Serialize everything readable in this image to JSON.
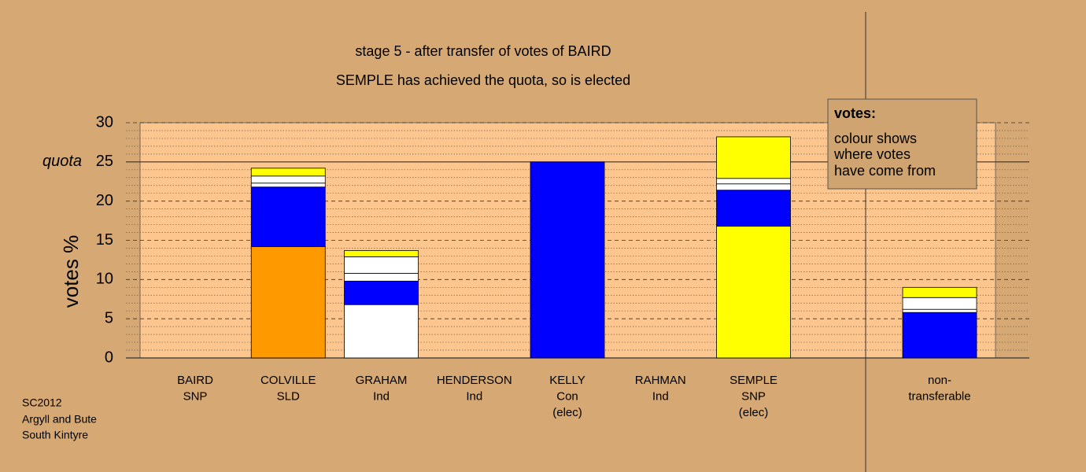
{
  "chart_data": {
    "type": "stacked-bar",
    "title": "stage 5 - after transfer of votes of BAIRD",
    "subtitle": "SEMPLE has achieved the quota, so is elected",
    "y_label": "votes %",
    "categories": [
      [
        "BAIRD",
        "SNP"
      ],
      [
        "COLVILLE",
        "SLD"
      ],
      [
        "GRAHAM",
        "Ind"
      ],
      [
        "HENDERSON",
        "Ind"
      ],
      [
        "KELLY",
        "Con",
        "(elec)"
      ],
      [
        "RAHMAN",
        "Ind"
      ],
      [
        "SEMPLE",
        "SNP",
        "(elec)"
      ],
      null,
      [
        "non-",
        "transferable"
      ]
    ],
    "series": [
      {
        "colors": [
          "#ffff00",
          "#ff9900",
          "#ffffff",
          "#ffffff",
          "#0000ff",
          "#ffffff",
          "#ffff00",
          null,
          "#0000ff"
        ],
        "values": [
          0,
          14.2,
          6.8,
          0,
          25.0,
          0,
          16.8,
          null,
          0
        ]
      },
      {
        "color": "#0000ff",
        "values": [
          0,
          7.6,
          3.0,
          0,
          0,
          0,
          4.6,
          null,
          5.8
        ]
      },
      {
        "color": "#ffffff",
        "values": [
          0,
          0.5,
          1.0,
          0,
          0,
          0,
          0.8,
          null,
          0.4
        ]
      },
      {
        "color": "#ffffff",
        "values": [
          0,
          0.9,
          2.1,
          0,
          0,
          0,
          0.7,
          null,
          1.5
        ]
      },
      {
        "color": "#ffff00",
        "values": [
          0,
          1.0,
          0.8,
          0,
          0,
          0,
          5.3,
          null,
          1.3
        ]
      }
    ],
    "ylim": [
      0,
      30
    ],
    "yticks": [
      0,
      5,
      10,
      15,
      20,
      25,
      30
    ],
    "minor_yticks": [
      1,
      2,
      3,
      4,
      6,
      7,
      8,
      9,
      11,
      12,
      13,
      14,
      16,
      17,
      18,
      19,
      21,
      22,
      23,
      24,
      26,
      27,
      28,
      29
    ],
    "quota": {
      "label": "quota",
      "value": 25
    },
    "note": {
      "title": "votes:",
      "lines": [
        "colour shows",
        "where votes",
        "have come from"
      ]
    },
    "footer": [
      "SC2012",
      "Argyll and Bute",
      "South Kintyre"
    ]
  }
}
